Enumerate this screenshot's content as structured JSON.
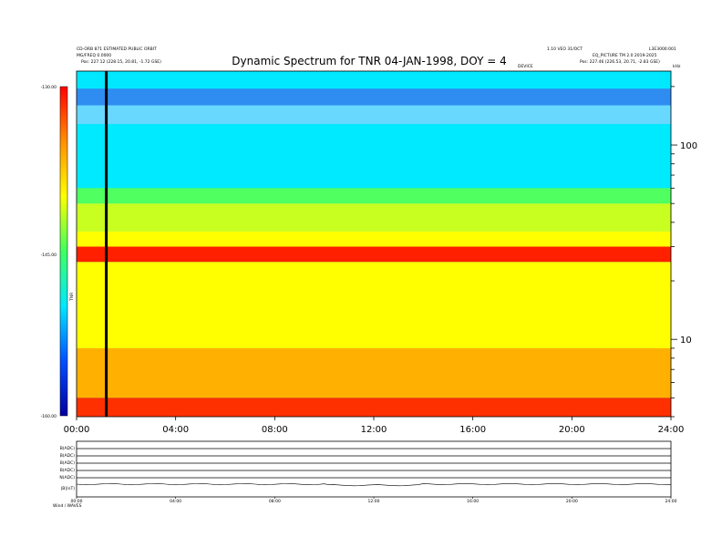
{
  "header": {
    "left_line1": "CD-ORB 871 ESTIMATED PUBLIC ORBIT",
    "left_line2": "MG/FREQ 0.0000",
    "left_line3": "Pos: 227.12 (228.15, 20.81, -1.72 GSE)",
    "right_line1": "1.10 VEO 31/OCT",
    "right_line2": "EQ_PICTURE TM 2.0 2019-2025",
    "right_line3": "Pos: 227.46 (226.53, 20.71, -2.83 GSE)",
    "right_corner": "L3E3000:001",
    "device_label": "DEVICE"
  },
  "chart_data": {
    "type": "heatmap",
    "title": "Dynamic Spectrum for TNR 04-JAN-1998, DOY = 4",
    "x_ticks": [
      "00:00",
      "04:00",
      "08:00",
      "12:00",
      "16:00",
      "20:00",
      "24:00"
    ],
    "x_range_hours": [
      0,
      24
    ],
    "y_scale": "log",
    "y_ticks": [
      {
        "label": "100",
        "value": 100
      },
      {
        "label": "10",
        "value": 10
      }
    ],
    "y_unit": "kHz",
    "y_range_khz": [
      4,
      240
    ],
    "colorbar": {
      "ticks": [
        "-130.00",
        "-145.00",
        "-160.00"
      ],
      "range": [
        -160,
        -130
      ],
      "label": "TNR",
      "colors": [
        "#0000a0",
        "#0050ff",
        "#00e8ff",
        "#40ff60",
        "#ffff00",
        "#ff9000",
        "#ff0000"
      ]
    },
    "bands": [
      {
        "from_khz": 195,
        "to_khz": 240,
        "color": "#00e8ff"
      },
      {
        "from_khz": 160,
        "to_khz": 195,
        "color": "#2f8cf0"
      },
      {
        "from_khz": 128,
        "to_khz": 160,
        "color": "#68d8ff"
      },
      {
        "from_khz": 60,
        "to_khz": 128,
        "color": "#00eaff"
      },
      {
        "from_khz": 50,
        "to_khz": 60,
        "color": "#50ff60"
      },
      {
        "from_khz": 36,
        "to_khz": 50,
        "color": "#c8ff20"
      },
      {
        "from_khz": 30,
        "to_khz": 36,
        "color": "#ffff00"
      },
      {
        "from_khz": 25,
        "to_khz": 30,
        "color": "#ff2000"
      },
      {
        "from_khz": 9,
        "to_khz": 25,
        "color": "#ffff00"
      },
      {
        "from_khz": 5,
        "to_khz": 9,
        "color": "#ffb000"
      },
      {
        "from_khz": 4,
        "to_khz": 5,
        "color": "#ff3000"
      }
    ],
    "marker_time_hours": 1.2,
    "sub_panels": {
      "labels": [
        "B(ADC)",
        "B(ADC)",
        "B(ADC)",
        "B(ADC)",
        "N(ADC)",
        "|B|(nT)"
      ],
      "x_ticks": [
        "00:00",
        "04:00",
        "08:00",
        "12:00",
        "16:00",
        "20:00",
        "24:00"
      ]
    },
    "footer_label": "Wind / WAVES"
  }
}
